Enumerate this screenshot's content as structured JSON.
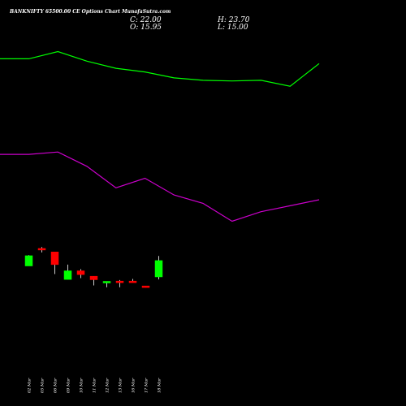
{
  "chart_data": {
    "type": "candlestick",
    "title": "BANKNIFTY 65500.00 CE Options Chart MunafaSutra.com",
    "ohlc_readout": {
      "open_label": "O: 15.95",
      "high_label": "H: 23.70",
      "low_label": "L: 15.00",
      "close_label": "C: 22.00"
    },
    "x_labels": [
      "02 Mar",
      "05 Mar",
      "06 Mar",
      "09 Mar",
      "10 Mar",
      "11 Mar",
      "12 Mar",
      "13 Mar",
      "16 Mar",
      "17 Mar",
      "18 Mar"
    ],
    "candles": [
      {
        "date": "02 Mar",
        "open": 20.0,
        "high": 24.0,
        "low": 20.0,
        "close": 23.8,
        "dir": "up"
      },
      {
        "date": "05 Mar",
        "open": 26.5,
        "high": 27.0,
        "low": 25.0,
        "close": 26.0,
        "dir": "down"
      },
      {
        "date": "06 Mar",
        "open": 25.2,
        "high": 25.2,
        "low": 17.0,
        "close": 20.5,
        "dir": "down"
      },
      {
        "date": "09 Mar",
        "open": 15.0,
        "high": 20.5,
        "low": 15.0,
        "close": 18.2,
        "dir": "up"
      },
      {
        "date": "10 Mar",
        "open": 18.2,
        "high": 18.8,
        "low": 15.5,
        "close": 16.8,
        "dir": "down"
      },
      {
        "date": "11 Mar",
        "open": 16.2,
        "high": 16.2,
        "low": 12.8,
        "close": 14.9,
        "dir": "down"
      },
      {
        "date": "12 Mar",
        "open": 13.8,
        "high": 14.3,
        "low": 12.1,
        "close": 14.3,
        "dir": "up"
      },
      {
        "date": "13 Mar",
        "open": 14.4,
        "high": 14.8,
        "low": 12.1,
        "close": 13.9,
        "dir": "down"
      },
      {
        "date": "16 Mar",
        "open": 14.4,
        "high": 15.2,
        "low": 14.0,
        "close": 14.2,
        "dir": "down"
      },
      {
        "date": "17 Mar",
        "open": 12.6,
        "high": 12.6,
        "low": 12.0,
        "close": 12.0,
        "dir": "down"
      },
      {
        "date": "18 Mar",
        "open": 15.95,
        "high": 23.7,
        "low": 15.0,
        "close": 22.0,
        "dir": "up"
      }
    ],
    "line_series": [
      {
        "color": "#00ff00",
        "values": [
          112,
          112,
          115,
          111,
          108,
          106.5,
          104,
          103,
          102.7,
          103,
          100.5,
          110
        ]
      },
      {
        "color": "#cc00cc",
        "values": [
          72,
          72,
          73,
          67,
          58,
          62,
          55,
          51.5,
          44,
          48,
          50.5,
          53
        ]
      }
    ],
    "y_range_price": [
      0,
      65
    ],
    "y_range_lines": [
      0,
      123
    ],
    "colors": {
      "up": "#00ff00",
      "down": "#ff0000",
      "background": "#000000",
      "text": "#ffffff"
    },
    "grid": false
  }
}
